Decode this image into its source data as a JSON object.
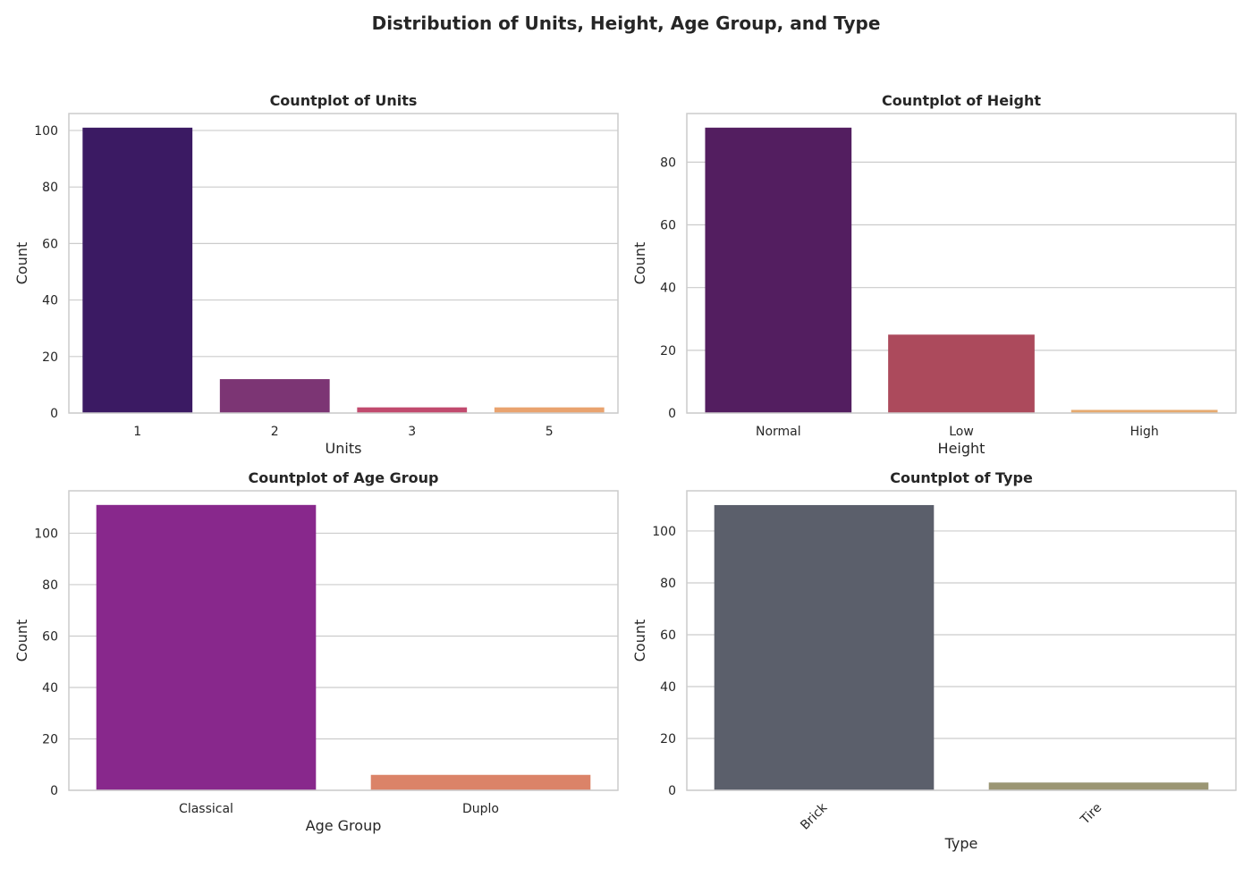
{
  "title": "Distribution of Units, Height, Age Group, and Type",
  "chart_data": [
    {
      "type": "bar",
      "title": "Countplot of Units",
      "xlabel": "Units",
      "ylabel": "Count",
      "categories": [
        "1",
        "2",
        "3",
        "5"
      ],
      "values": [
        101,
        12,
        2,
        2
      ],
      "colors": [
        "#3b1a63",
        "#7c3574",
        "#c14a6e",
        "#e9a36f"
      ],
      "ylim": [
        0,
        106
      ],
      "yticks": [
        0,
        20,
        40,
        60,
        80,
        100
      ],
      "grid": true,
      "tick_rotation": 0
    },
    {
      "type": "bar",
      "title": "Countplot of Height",
      "xlabel": "Height",
      "ylabel": "Count",
      "categories": [
        "Normal",
        "Low",
        "High"
      ],
      "values": [
        91,
        25,
        1
      ],
      "colors": [
        "#531e60",
        "#ac4a5c",
        "#e6aa6f"
      ],
      "ylim": [
        0,
        95.5
      ],
      "yticks": [
        0,
        20,
        40,
        60,
        80
      ],
      "grid": true,
      "tick_rotation": 0
    },
    {
      "type": "bar",
      "title": "Countplot of Age Group",
      "xlabel": "Age Group",
      "ylabel": "Count",
      "categories": [
        "Classical",
        "Duplo"
      ],
      "values": [
        111,
        6
      ],
      "colors": [
        "#88288c",
        "#db8368"
      ],
      "ylim": [
        0,
        116.5
      ],
      "yticks": [
        0,
        20,
        40,
        60,
        80,
        100
      ],
      "grid": true,
      "tick_rotation": 0
    },
    {
      "type": "bar",
      "title": "Countplot of Type",
      "xlabel": "Type",
      "ylabel": "Count",
      "categories": [
        "Brick",
        "Tire"
      ],
      "values": [
        110,
        3
      ],
      "colors": [
        "#5b5f6b",
        "#9b9674"
      ],
      "ylim": [
        0,
        115.5
      ],
      "yticks": [
        0,
        20,
        40,
        60,
        80,
        100
      ],
      "grid": true,
      "tick_rotation": -45
    }
  ]
}
